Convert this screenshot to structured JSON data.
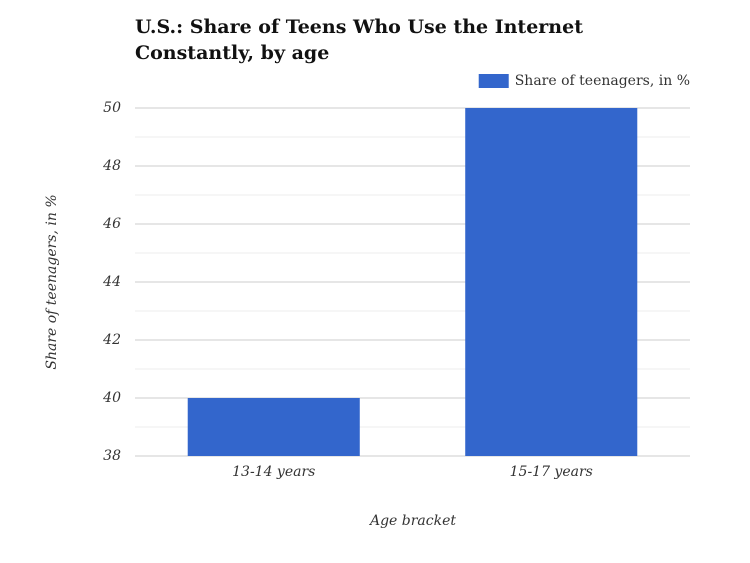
{
  "chart_data": {
    "type": "bar",
    "title": "U.S.: Share of Teens Who Use the Internet Constantly, by age",
    "categories": [
      "13-14 years",
      "15-17 years"
    ],
    "series": [
      {
        "name": "Share of teenagers, in %",
        "color": "#3366cc",
        "values": [
          40,
          50
        ]
      }
    ],
    "x_label": "Age bracket",
    "y_label": "Share of teenagers, in %",
    "ylim": [
      38,
      50
    ],
    "yticks": [
      38,
      40,
      42,
      44,
      46,
      48,
      50
    ],
    "minor_yticks": [
      39,
      41,
      43,
      45,
      47,
      49
    ],
    "grid": true,
    "legend": "top-right"
  }
}
